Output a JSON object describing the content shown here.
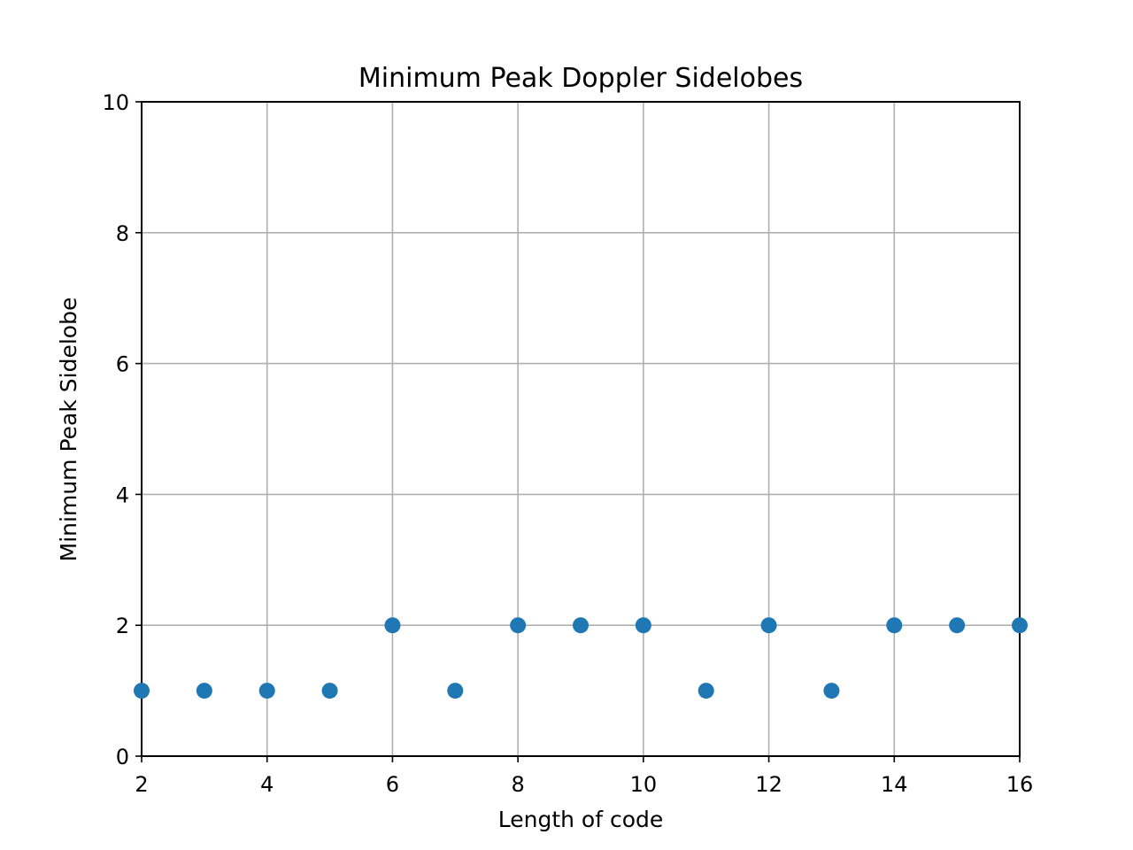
{
  "chart_data": {
    "type": "scatter",
    "title": "Minimum Peak Doppler Sidelobes",
    "xlabel": "Length of code",
    "ylabel": "Minimum Peak Sidelobe",
    "xlim": [
      2,
      16
    ],
    "ylim": [
      0,
      10
    ],
    "xticks": [
      2,
      4,
      6,
      8,
      10,
      12,
      14,
      16
    ],
    "yticks": [
      0,
      2,
      4,
      6,
      8,
      10
    ],
    "grid": true,
    "color": "#1f77b4",
    "series": [
      {
        "x": [
          2,
          3,
          4,
          5,
          6,
          7,
          8,
          9,
          10,
          11,
          12,
          13,
          14,
          15,
          16
        ],
        "y": [
          1,
          1,
          1,
          1,
          2,
          1,
          2,
          2,
          2,
          1,
          2,
          1,
          2,
          2,
          2
        ]
      }
    ]
  }
}
